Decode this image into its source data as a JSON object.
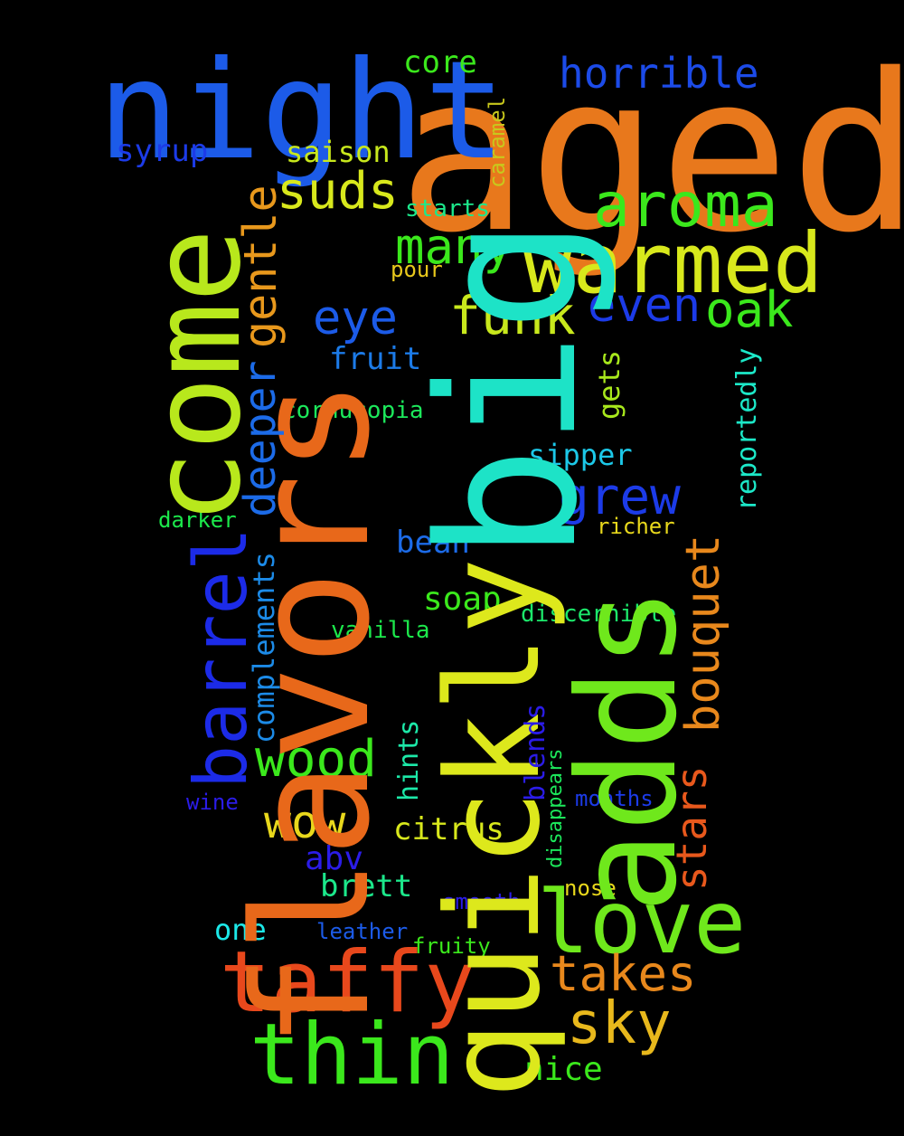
{
  "words": [
    {
      "text": "aged",
      "color": "#E8781C"
    },
    {
      "text": "big",
      "color": "#1DE3C7"
    },
    {
      "text": "flavors",
      "color": "#E8681A"
    },
    {
      "text": "quickly",
      "color": "#DDE81C"
    },
    {
      "text": "adds",
      "color": "#6FE81C"
    },
    {
      "text": "come",
      "color": "#B8E81C"
    },
    {
      "text": "night",
      "color": "#1C5BE8"
    },
    {
      "text": "warmed",
      "color": "#D8E81C"
    },
    {
      "text": "aroma",
      "color": "#3BE81C"
    },
    {
      "text": "barrel",
      "color": "#1C2BE8"
    },
    {
      "text": "taffy",
      "color": "#E8481C"
    },
    {
      "text": "thin",
      "color": "#3BE81C"
    },
    {
      "text": "love",
      "color": "#6FE81C"
    },
    {
      "text": "funk",
      "color": "#C8E81C"
    },
    {
      "text": "oak",
      "color": "#3BE81C"
    },
    {
      "text": "even",
      "color": "#1C3BE8"
    },
    {
      "text": "many",
      "color": "#3BE81C"
    },
    {
      "text": "suds",
      "color": "#D8E81C"
    },
    {
      "text": "eye",
      "color": "#1C5BE8"
    },
    {
      "text": "gentle",
      "color": "#E8981C"
    },
    {
      "text": "deeper",
      "color": "#1C6BE8"
    },
    {
      "text": "grew",
      "color": "#1C3BE8"
    },
    {
      "text": "bouquet",
      "color": "#E8881C"
    },
    {
      "text": "horrible",
      "color": "#1C4BE8"
    },
    {
      "text": "wood",
      "color": "#3BE81C"
    },
    {
      "text": "wow",
      "color": "#E8D81C"
    },
    {
      "text": "stars",
      "color": "#E8581C"
    },
    {
      "text": "takes",
      "color": "#E8881C"
    },
    {
      "text": "sky",
      "color": "#E8B81C"
    },
    {
      "text": "core",
      "color": "#3BE81C"
    },
    {
      "text": "syrup",
      "color": "#1C3BE8"
    },
    {
      "text": "saison",
      "color": "#C8E81C"
    },
    {
      "text": "starts",
      "color": "#1CE88B"
    },
    {
      "text": "caramel",
      "color": "#C8C81C"
    },
    {
      "text": "pour",
      "color": "#E8C81C"
    },
    {
      "text": "fruit",
      "color": "#1C7BE8"
    },
    {
      "text": "cornucopia",
      "color": "#1CE85B"
    },
    {
      "text": "gets",
      "color": "#A8E81C"
    },
    {
      "text": "reportedly",
      "color": "#1CE8C8"
    },
    {
      "text": "sipper",
      "color": "#1CC8E8"
    },
    {
      "text": "complements",
      "color": "#1C8BE8"
    },
    {
      "text": "darker",
      "color": "#1CE84B"
    },
    {
      "text": "richer",
      "color": "#E8D81C"
    },
    {
      "text": "bean",
      "color": "#1C6BE8"
    },
    {
      "text": "soap",
      "color": "#3BE81C"
    },
    {
      "text": "discernible",
      "color": "#1CE86B"
    },
    {
      "text": "vanilla",
      "color": "#1CE84B"
    },
    {
      "text": "hints",
      "color": "#1CE8A8"
    },
    {
      "text": "blends",
      "color": "#2B1CE8"
    },
    {
      "text": "disappears",
      "color": "#1CE85B"
    },
    {
      "text": "months",
      "color": "#1C3BE8"
    },
    {
      "text": "wine",
      "color": "#2B1CE8"
    },
    {
      "text": "citrus",
      "color": "#D8E81C"
    },
    {
      "text": "abv",
      "color": "#2B1CE8"
    },
    {
      "text": "brett",
      "color": "#1CE88B"
    },
    {
      "text": "nose",
      "color": "#E8D81C"
    },
    {
      "text": "smooth",
      "color": "#2B1CE8"
    },
    {
      "text": "one",
      "color": "#1CE8E8"
    },
    {
      "text": "leather",
      "color": "#1C5BE8"
    },
    {
      "text": "fruity",
      "color": "#3BE81C"
    },
    {
      "text": "nice",
      "color": "#3BE81C"
    }
  ]
}
